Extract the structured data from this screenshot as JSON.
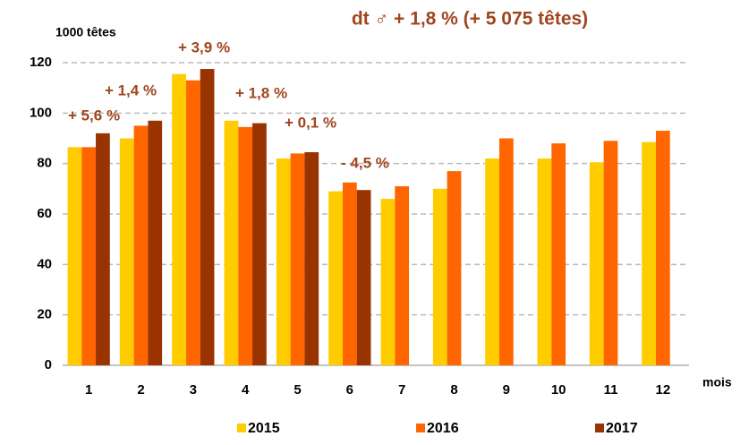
{
  "chart_data": {
    "type": "bar",
    "title": "dt ♂ + 1,8 % (+ 5 075 têtes)",
    "y_label": "1000 têtes",
    "x_label": "mois",
    "categories": [
      "1",
      "2",
      "3",
      "4",
      "5",
      "6",
      "7",
      "8",
      "9",
      "10",
      "11",
      "12"
    ],
    "series": [
      {
        "name": "2015",
        "color": "#ffcc00",
        "values": [
          86.5,
          90,
          115.5,
          97,
          82,
          69,
          66,
          70,
          82,
          82,
          80.5,
          88.5
        ]
      },
      {
        "name": "2016",
        "color": "#ff6600",
        "values": [
          86.5,
          95,
          113,
          94.5,
          84,
          72.5,
          71,
          77,
          90,
          88,
          89,
          93
        ]
      },
      {
        "name": "2017",
        "color": "#993300",
        "values": [
          92,
          97,
          117.5,
          96,
          84.5,
          69.5,
          null,
          null,
          null,
          null,
          null,
          null
        ]
      }
    ],
    "annotations": [
      "+ 5,6 %",
      "+ 1,4 %",
      "+ 3,9 %",
      "+ 1,8 %",
      "+ 0,1 %",
      "- 4,5 %"
    ],
    "ylim": [
      0,
      120
    ],
    "yticks": [
      0,
      20,
      40,
      60,
      80,
      100,
      120
    ],
    "grid": true
  }
}
